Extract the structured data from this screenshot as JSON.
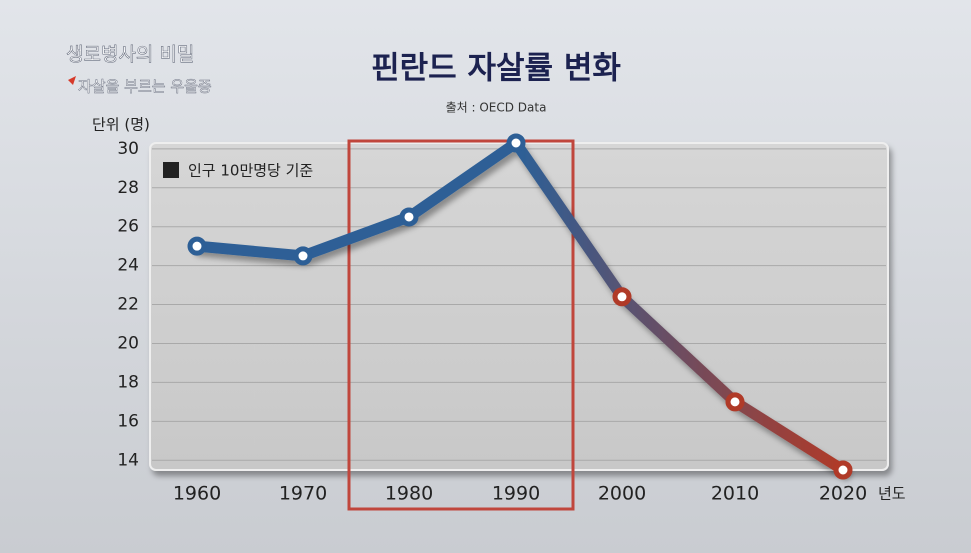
{
  "logo": {
    "title": "생로병사의 비밀",
    "subtitle": "자살을 부르는 우울증"
  },
  "chart_data": {
    "type": "line",
    "title": "핀란드 자살률 변화",
    "subtitle": "출처 : OECD Data",
    "y_label": "단위 (명)",
    "x_label": "년도",
    "categories": [
      "1960",
      "1970",
      "1980",
      "1990",
      "2000",
      "2010",
      "2020"
    ],
    "series": [
      {
        "name": "인구 10만명당 기준",
        "color": "#2d5f96",
        "color_end": "#b03a28",
        "values": [
          25.0,
          24.5,
          26.5,
          30.3,
          22.4,
          17.0,
          13.5
        ]
      }
    ],
    "ylim": [
      13.5,
      30.3
    ],
    "yticks": [
      14,
      16,
      18,
      20,
      22,
      24,
      26,
      28,
      30
    ],
    "grid": true
  }
}
